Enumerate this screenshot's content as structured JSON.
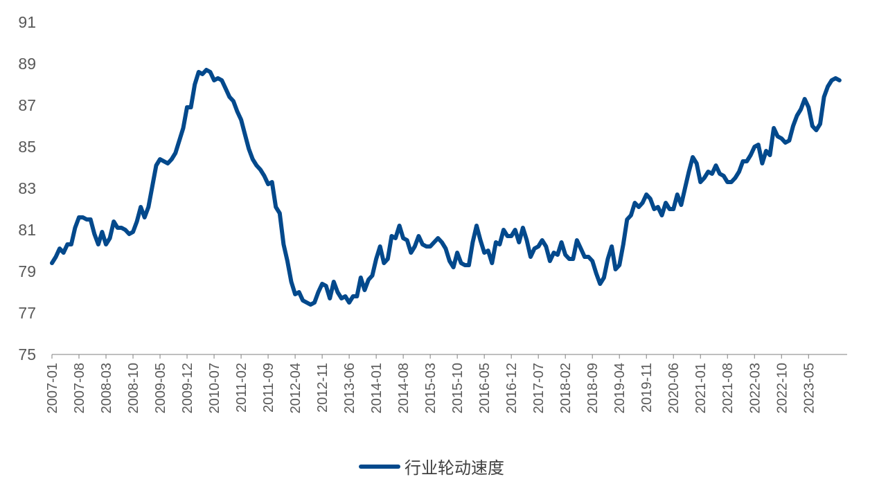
{
  "chart_data": {
    "type": "line",
    "title": "",
    "xlabel": "",
    "ylabel": "",
    "ylim": [
      75,
      91
    ],
    "yticks": [
      75,
      77,
      79,
      81,
      83,
      85,
      87,
      89,
      91
    ],
    "xlim": [
      "2007-01",
      "2024-03"
    ],
    "x_tick_labels": [
      "2007-01",
      "2007-08",
      "2008-03",
      "2008-10",
      "2009-05",
      "2009-12",
      "2010-07",
      "2011-02",
      "2011-09",
      "2012-04",
      "2012-11",
      "2013-06",
      "2014-01",
      "2014-08",
      "2015-03",
      "2015-10",
      "2016-05",
      "2016-12",
      "2017-07",
      "2018-02",
      "2018-09",
      "2019-04",
      "2019-11",
      "2020-06",
      "2021-01",
      "2021-08",
      "2022-03",
      "2022-10",
      "2023-05"
    ],
    "grid": false,
    "legend_position": "bottom",
    "color": "#03498c",
    "series": [
      {
        "name": "行业轮动速度",
        "points": [
          [
            "2007-01",
            79.4
          ],
          [
            "2007-02",
            79.7
          ],
          [
            "2007-03",
            80.1
          ],
          [
            "2007-04",
            79.9
          ],
          [
            "2007-05",
            80.3
          ],
          [
            "2007-06",
            80.3
          ],
          [
            "2007-07",
            81.1
          ],
          [
            "2007-08",
            81.6
          ],
          [
            "2007-09",
            81.6
          ],
          [
            "2007-10",
            81.5
          ],
          [
            "2007-11",
            81.5
          ],
          [
            "2007-12",
            80.8
          ],
          [
            "2008-01",
            80.3
          ],
          [
            "2008-02",
            80.9
          ],
          [
            "2008-03",
            80.3
          ],
          [
            "2008-04",
            80.6
          ],
          [
            "2008-05",
            81.4
          ],
          [
            "2008-06",
            81.1
          ],
          [
            "2008-07",
            81.1
          ],
          [
            "2008-08",
            81.0
          ],
          [
            "2008-09",
            80.8
          ],
          [
            "2008-10",
            80.9
          ],
          [
            "2008-11",
            81.4
          ],
          [
            "2008-12",
            82.1
          ],
          [
            "2009-01",
            81.6
          ],
          [
            "2009-02",
            82.1
          ],
          [
            "2009-03",
            83.1
          ],
          [
            "2009-04",
            84.1
          ],
          [
            "2009-05",
            84.4
          ],
          [
            "2009-06",
            84.3
          ],
          [
            "2009-07",
            84.2
          ],
          [
            "2009-08",
            84.4
          ],
          [
            "2009-09",
            84.7
          ],
          [
            "2009-10",
            85.3
          ],
          [
            "2009-11",
            85.9
          ],
          [
            "2009-12",
            86.9
          ],
          [
            "2010-01",
            86.9
          ],
          [
            "2010-02",
            88.0
          ],
          [
            "2010-03",
            88.6
          ],
          [
            "2010-04",
            88.5
          ],
          [
            "2010-05",
            88.7
          ],
          [
            "2010-06",
            88.6
          ],
          [
            "2010-07",
            88.2
          ],
          [
            "2010-08",
            88.3
          ],
          [
            "2010-09",
            88.2
          ],
          [
            "2010-10",
            87.8
          ],
          [
            "2010-11",
            87.4
          ],
          [
            "2010-12",
            87.2
          ],
          [
            "2011-01",
            86.7
          ],
          [
            "2011-02",
            86.3
          ],
          [
            "2011-03",
            85.6
          ],
          [
            "2011-04",
            84.9
          ],
          [
            "2011-05",
            84.4
          ],
          [
            "2011-06",
            84.1
          ],
          [
            "2011-07",
            83.9
          ],
          [
            "2011-08",
            83.6
          ],
          [
            "2011-09",
            83.2
          ],
          [
            "2011-10",
            83.3
          ],
          [
            "2011-11",
            82.1
          ],
          [
            "2011-12",
            81.8
          ],
          [
            "2012-01",
            80.3
          ],
          [
            "2012-02",
            79.5
          ],
          [
            "2012-03",
            78.5
          ],
          [
            "2012-04",
            77.9
          ],
          [
            "2012-05",
            78.0
          ],
          [
            "2012-06",
            77.6
          ],
          [
            "2012-07",
            77.5
          ],
          [
            "2012-08",
            77.4
          ],
          [
            "2012-09",
            77.5
          ],
          [
            "2012-10",
            78.0
          ],
          [
            "2012-11",
            78.4
          ],
          [
            "2012-12",
            78.3
          ],
          [
            "2013-01",
            77.7
          ],
          [
            "2013-02",
            78.5
          ],
          [
            "2013-03",
            78.0
          ],
          [
            "2013-04",
            77.7
          ],
          [
            "2013-05",
            77.8
          ],
          [
            "2013-06",
            77.5
          ],
          [
            "2013-07",
            77.8
          ],
          [
            "2013-08",
            77.8
          ],
          [
            "2013-09",
            78.7
          ],
          [
            "2013-10",
            78.1
          ],
          [
            "2013-11",
            78.6
          ],
          [
            "2013-12",
            78.8
          ],
          [
            "2014-01",
            79.6
          ],
          [
            "2014-02",
            80.2
          ],
          [
            "2014-03",
            79.4
          ],
          [
            "2014-04",
            79.6
          ],
          [
            "2014-05",
            80.7
          ],
          [
            "2014-06",
            80.6
          ],
          [
            "2014-07",
            81.2
          ],
          [
            "2014-08",
            80.6
          ],
          [
            "2014-09",
            80.5
          ],
          [
            "2014-10",
            79.9
          ],
          [
            "2014-11",
            80.2
          ],
          [
            "2014-12",
            80.7
          ],
          [
            "2015-01",
            80.3
          ],
          [
            "2015-02",
            80.2
          ],
          [
            "2015-03",
            80.2
          ],
          [
            "2015-04",
            80.4
          ],
          [
            "2015-05",
            80.6
          ],
          [
            "2015-06",
            80.4
          ],
          [
            "2015-07",
            80.1
          ],
          [
            "2015-08",
            79.5
          ],
          [
            "2015-09",
            79.2
          ],
          [
            "2015-10",
            79.9
          ],
          [
            "2015-11",
            79.4
          ],
          [
            "2015-12",
            79.3
          ],
          [
            "2016-01",
            79.3
          ],
          [
            "2016-02",
            80.4
          ],
          [
            "2016-03",
            81.2
          ],
          [
            "2016-04",
            80.5
          ],
          [
            "2016-05",
            79.9
          ],
          [
            "2016-06",
            80.0
          ],
          [
            "2016-07",
            79.4
          ],
          [
            "2016-08",
            80.4
          ],
          [
            "2016-09",
            80.3
          ],
          [
            "2016-10",
            81.0
          ],
          [
            "2016-11",
            80.7
          ],
          [
            "2016-12",
            80.7
          ],
          [
            "2017-01",
            81.0
          ],
          [
            "2017-02",
            80.4
          ],
          [
            "2017-03",
            81.1
          ],
          [
            "2017-04",
            80.5
          ],
          [
            "2017-05",
            79.7
          ],
          [
            "2017-06",
            80.1
          ],
          [
            "2017-07",
            80.2
          ],
          [
            "2017-08",
            80.5
          ],
          [
            "2017-09",
            80.2
          ],
          [
            "2017-10",
            79.5
          ],
          [
            "2017-11",
            79.9
          ],
          [
            "2017-12",
            79.8
          ],
          [
            "2018-01",
            80.4
          ],
          [
            "2018-02",
            79.8
          ],
          [
            "2018-03",
            79.6
          ],
          [
            "2018-04",
            79.6
          ],
          [
            "2018-05",
            80.5
          ],
          [
            "2018-06",
            80.1
          ],
          [
            "2018-07",
            79.7
          ],
          [
            "2018-08",
            79.7
          ],
          [
            "2018-09",
            79.5
          ],
          [
            "2018-10",
            78.9
          ],
          [
            "2018-11",
            78.4
          ],
          [
            "2018-12",
            78.7
          ],
          [
            "2019-01",
            79.6
          ],
          [
            "2019-02",
            80.2
          ],
          [
            "2019-03",
            79.1
          ],
          [
            "2019-04",
            79.3
          ],
          [
            "2019-05",
            80.3
          ],
          [
            "2019-06",
            81.5
          ],
          [
            "2019-07",
            81.7
          ],
          [
            "2019-08",
            82.3
          ],
          [
            "2019-09",
            82.1
          ],
          [
            "2019-10",
            82.3
          ],
          [
            "2019-11",
            82.7
          ],
          [
            "2019-12",
            82.5
          ],
          [
            "2020-01",
            82.0
          ],
          [
            "2020-02",
            82.1
          ],
          [
            "2020-03",
            81.7
          ],
          [
            "2020-04",
            82.3
          ],
          [
            "2020-05",
            82.0
          ],
          [
            "2020-06",
            82.0
          ],
          [
            "2020-07",
            82.7
          ],
          [
            "2020-08",
            82.2
          ],
          [
            "2020-09",
            83.0
          ],
          [
            "2020-10",
            83.8
          ],
          [
            "2020-11",
            84.5
          ],
          [
            "2020-12",
            84.2
          ],
          [
            "2021-01",
            83.3
          ],
          [
            "2021-02",
            83.5
          ],
          [
            "2021-03",
            83.8
          ],
          [
            "2021-04",
            83.7
          ],
          [
            "2021-05",
            84.1
          ],
          [
            "2021-06",
            83.7
          ],
          [
            "2021-07",
            83.6
          ],
          [
            "2021-08",
            83.3
          ],
          [
            "2021-09",
            83.3
          ],
          [
            "2021-10",
            83.5
          ],
          [
            "2021-11",
            83.8
          ],
          [
            "2021-12",
            84.3
          ],
          [
            "2022-01",
            84.3
          ],
          [
            "2022-02",
            84.6
          ],
          [
            "2022-03",
            85.0
          ],
          [
            "2022-04",
            85.1
          ],
          [
            "2022-05",
            84.2
          ],
          [
            "2022-06",
            84.8
          ],
          [
            "2022-07",
            84.6
          ],
          [
            "2022-08",
            85.9
          ],
          [
            "2022-09",
            85.5
          ],
          [
            "2022-10",
            85.4
          ],
          [
            "2022-11",
            85.2
          ],
          [
            "2022-12",
            85.3
          ],
          [
            "2023-01",
            86.0
          ],
          [
            "2023-02",
            86.5
          ],
          [
            "2023-03",
            86.8
          ],
          [
            "2023-04",
            87.3
          ],
          [
            "2023-05",
            86.9
          ],
          [
            "2023-06",
            86.0
          ],
          [
            "2023-07",
            85.8
          ],
          [
            "2023-08",
            86.1
          ],
          [
            "2023-09",
            87.4
          ],
          [
            "2023-10",
            87.9
          ],
          [
            "2023-11",
            88.2
          ],
          [
            "2023-12",
            88.3
          ],
          [
            "2024-01",
            88.2
          ]
        ]
      }
    ]
  }
}
